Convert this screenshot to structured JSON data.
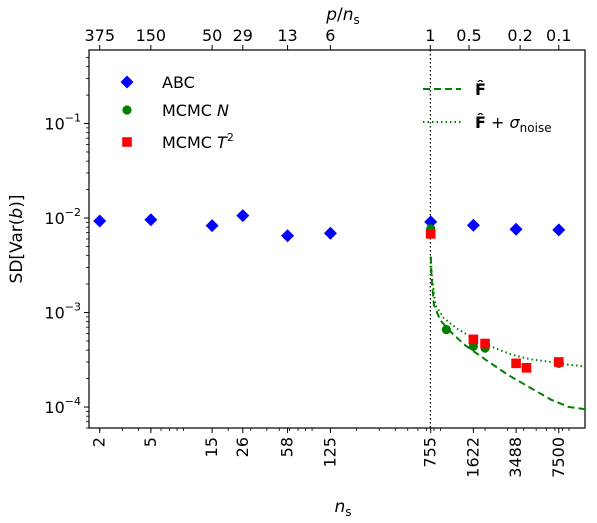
{
  "chart_data": {
    "type": "scatter",
    "x_scale": "log",
    "y_scale": "log",
    "xlabel": "n_s",
    "ylabel": "SD[Var(b)]",
    "top_xlabel": "p/n_s",
    "xlim": [
      1.65,
      12000
    ],
    "ylim": [
      6e-05,
      0.6
    ],
    "grid": false,
    "legend_position": "top-left and top-right",
    "x_ticks": [
      {
        "value": 2,
        "label": "2"
      },
      {
        "value": 5,
        "label": "5"
      },
      {
        "value": 15,
        "label": "15"
      },
      {
        "value": 26,
        "label": "26"
      },
      {
        "value": 58,
        "label": "58"
      },
      {
        "value": 125,
        "label": "125"
      },
      {
        "value": 755,
        "label": "755"
      },
      {
        "value": 1622,
        "label": "1622"
      },
      {
        "value": 3488,
        "label": "3488"
      },
      {
        "value": 7500,
        "label": "7500"
      }
    ],
    "top_ticks": [
      {
        "value": 2,
        "label": "375"
      },
      {
        "value": 5,
        "label": "150"
      },
      {
        "value": 15,
        "label": "50"
      },
      {
        "value": 26,
        "label": "29"
      },
      {
        "value": 58,
        "label": "13"
      },
      {
        "value": 125,
        "label": "6"
      },
      {
        "value": 750,
        "label": "1"
      },
      {
        "value": 1500,
        "label": "0.5"
      },
      {
        "value": 3750,
        "label": "0.2"
      },
      {
        "value": 7500,
        "label": "0.1"
      }
    ],
    "y_ticks": [
      {
        "value": 0.0001,
        "base": "10",
        "exp": "−4"
      },
      {
        "value": 0.001,
        "base": "10",
        "exp": "−3"
      },
      {
        "value": 0.01,
        "base": "10",
        "exp": "−2"
      },
      {
        "value": 0.1,
        "base": "10",
        "exp": "−1"
      }
    ],
    "vline_x": 750,
    "series": [
      {
        "name": "ABC",
        "marker": "diamond",
        "color": "#0000ff",
        "points": [
          {
            "x": 2,
            "y": 0.0093
          },
          {
            "x": 5,
            "y": 0.0096
          },
          {
            "x": 15,
            "y": 0.0083
          },
          {
            "x": 26,
            "y": 0.0106
          },
          {
            "x": 58,
            "y": 0.0065
          },
          {
            "x": 125,
            "y": 0.0069
          },
          {
            "x": 755,
            "y": 0.0091
          },
          {
            "x": 1622,
            "y": 0.0084
          },
          {
            "x": 3488,
            "y": 0.0076
          },
          {
            "x": 7500,
            "y": 0.0075
          }
        ]
      },
      {
        "name": "MCMC N",
        "marker": "circle",
        "color": "#008000",
        "points": [
          {
            "x": 755,
            "y": 0.0077
          },
          {
            "x": 1000,
            "y": 0.00066
          },
          {
            "x": 1622,
            "y": 0.00044
          },
          {
            "x": 2000,
            "y": 0.00042
          },
          {
            "x": 3488,
            "y": 0.00029
          },
          {
            "x": 4200,
            "y": 0.00026
          },
          {
            "x": 7500,
            "y": 0.00029
          }
        ]
      },
      {
        "name": "MCMC T^2",
        "marker": "square",
        "color": "#ff0000",
        "points": [
          {
            "x": 755,
            "y": 0.0068
          },
          {
            "x": 1622,
            "y": 0.00052
          },
          {
            "x": 2000,
            "y": 0.00047
          },
          {
            "x": 3488,
            "y": 0.00029
          },
          {
            "x": 4200,
            "y": 0.00026
          },
          {
            "x": 7500,
            "y": 0.0003
          }
        ]
      }
    ],
    "lines": [
      {
        "name": "F̂",
        "style": "dashed",
        "color": "#008000",
        "points": [
          {
            "x": 757,
            "y": 0.0039
          },
          {
            "x": 765,
            "y": 0.0024
          },
          {
            "x": 800,
            "y": 0.0012
          },
          {
            "x": 900,
            "y": 0.00082
          },
          {
            "x": 1100,
            "y": 0.00061
          },
          {
            "x": 1400,
            "y": 0.00045
          },
          {
            "x": 2000,
            "y": 0.00032
          },
          {
            "x": 3000,
            "y": 0.00022
          },
          {
            "x": 4500,
            "y": 0.00016
          },
          {
            "x": 6500,
            "y": 0.00012
          },
          {
            "x": 9000,
            "y": 0.0001
          },
          {
            "x": 12000,
            "y": 9.5e-05
          }
        ]
      },
      {
        "name": "F̂ + σ_noise",
        "style": "dotted",
        "color": "#008000",
        "points": [
          {
            "x": 757,
            "y": 0.0039
          },
          {
            "x": 770,
            "y": 0.0025
          },
          {
            "x": 820,
            "y": 0.0012
          },
          {
            "x": 950,
            "y": 0.00088
          },
          {
            "x": 1200,
            "y": 0.00068
          },
          {
            "x": 1600,
            "y": 0.00054
          },
          {
            "x": 2200,
            "y": 0.00044
          },
          {
            "x": 3200,
            "y": 0.00036
          },
          {
            "x": 4500,
            "y": 0.00032
          },
          {
            "x": 6500,
            "y": 0.0003
          },
          {
            "x": 9000,
            "y": 0.00028
          },
          {
            "x": 12000,
            "y": 0.00027
          }
        ]
      }
    ],
    "legend_left": [
      {
        "label_main": "ABC",
        "label_sub": "",
        "marker": "diamond",
        "color": "#0000ff"
      },
      {
        "label_main": "MCMC N",
        "label_sub": "",
        "marker": "circle",
        "color": "#008000"
      },
      {
        "label_main": "MCMC T^2",
        "label_sub": "",
        "marker": "square",
        "color": "#ff0000"
      }
    ],
    "legend_right": [
      {
        "label_main": "F̂",
        "label_sub": "",
        "style": "dashed",
        "color": "#008000"
      },
      {
        "label_main": "F̂ + σ",
        "label_sub": "noise",
        "style": "dotted",
        "color": "#008000"
      }
    ]
  }
}
